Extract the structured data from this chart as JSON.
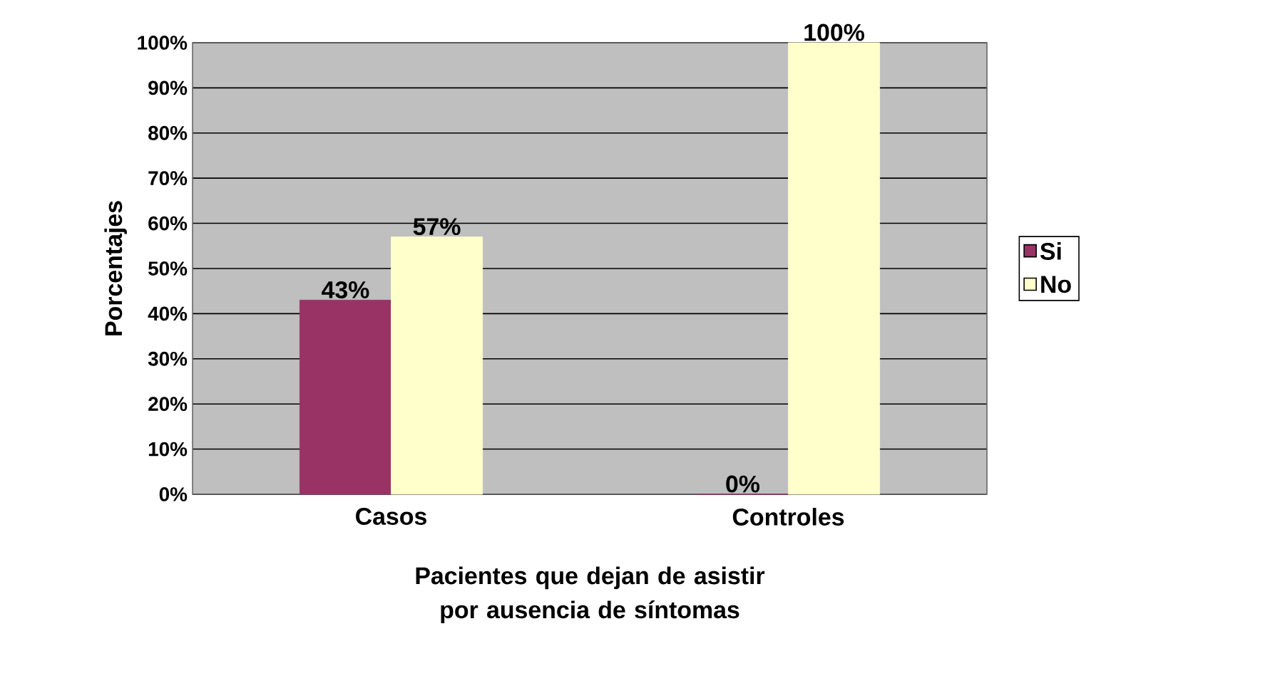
{
  "chart_data": {
    "type": "bar",
    "xlabel": "Pacientes que dejan de asistir por ausencia de síntomas",
    "ylabel": "Porcentajes",
    "categories": [
      "Casos",
      "Controles"
    ],
    "series": [
      {
        "name": "Si",
        "color": "#993366",
        "values": [
          43,
          0
        ],
        "value_labels": [
          "43%",
          "0%"
        ]
      },
      {
        "name": "No",
        "color": "#ffffcc",
        "values": [
          57,
          100
        ],
        "value_labels": [
          "57%",
          "100%"
        ]
      }
    ],
    "ylim": [
      0,
      100
    ],
    "yticks": [
      {
        "value": 0,
        "label": "0%"
      },
      {
        "value": 10,
        "label": "10%"
      },
      {
        "value": 20,
        "label": "20%"
      },
      {
        "value": 30,
        "label": "30%"
      },
      {
        "value": 40,
        "label": "40%"
      },
      {
        "value": 50,
        "label": "50%"
      },
      {
        "value": 60,
        "label": "60%"
      },
      {
        "value": 70,
        "label": "70%"
      },
      {
        "value": 80,
        "label": "80%"
      },
      {
        "value": 90,
        "label": "90%"
      },
      {
        "value": 100,
        "label": "100%"
      }
    ],
    "grid": "y",
    "legend": "right"
  }
}
